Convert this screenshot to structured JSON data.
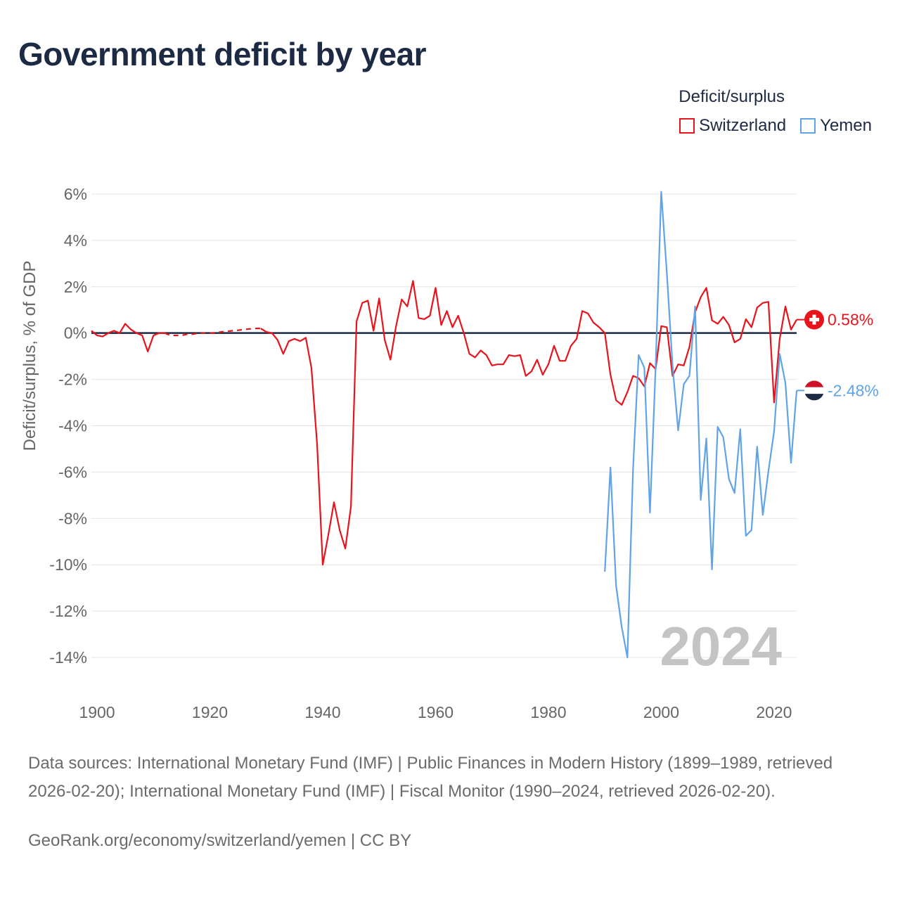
{
  "title": "Government deficit by year",
  "legend": {
    "title": "Deficit/surplus",
    "items": [
      {
        "name": "Switzerland",
        "color": "#e8141c"
      },
      {
        "name": "Yemen",
        "color": "#5fa4e6"
      }
    ]
  },
  "sources": "Data sources: International Monetary Fund (IMF) | Public Finances in Modern History (1899–1989, retrieved 2026-02-20); International Monetary Fund (IMF) | Fiscal Monitor (1990–2024, retrieved 2026-02-20).",
  "credit": "GeoRank.org/economy/switzerland/yemen | CC BY",
  "chart_data": {
    "type": "line",
    "title": "Government deficit by year",
    "xlabel": "",
    "ylabel": "Deficit/surplus, % of GDP",
    "xlim": [
      1899,
      2024
    ],
    "ylim": [
      -15,
      7
    ],
    "x_ticks": [
      1900,
      1920,
      1940,
      1960,
      1980,
      2000,
      2020
    ],
    "y_ticks": [
      6,
      4,
      2,
      0,
      -2,
      -4,
      -6,
      -8,
      -10,
      -12,
      -14
    ],
    "y_tick_labels": [
      "6%",
      "4%",
      "2%",
      "0%",
      "-2%",
      "-4%",
      "-6%",
      "-8%",
      "-10%",
      "-12%",
      "-14%"
    ],
    "year_label": "2024",
    "series": [
      {
        "name": "Switzerland",
        "color": "#e8141c",
        "end_label": "0.58%",
        "gap_range": [
          1912,
          1929
        ],
        "x": [
          1899,
          1900,
          1901,
          1902,
          1903,
          1904,
          1905,
          1906,
          1907,
          1908,
          1909,
          1910,
          1911,
          1912,
          1913,
          1914,
          1915,
          1916,
          1917,
          1918,
          1919,
          1920,
          1921,
          1922,
          1923,
          1924,
          1925,
          1926,
          1927,
          1928,
          1929,
          1930,
          1931,
          1932,
          1933,
          1934,
          1935,
          1936,
          1937,
          1938,
          1939,
          1940,
          1941,
          1942,
          1943,
          1944,
          1945,
          1946,
          1947,
          1948,
          1949,
          1950,
          1951,
          1952,
          1953,
          1954,
          1955,
          1956,
          1957,
          1958,
          1959,
          1960,
          1961,
          1962,
          1963,
          1964,
          1965,
          1966,
          1967,
          1968,
          1969,
          1970,
          1971,
          1972,
          1973,
          1974,
          1975,
          1976,
          1977,
          1978,
          1979,
          1980,
          1981,
          1982,
          1983,
          1984,
          1985,
          1986,
          1987,
          1988,
          1989,
          1990,
          1991,
          1992,
          1993,
          1994,
          1995,
          1996,
          1997,
          1998,
          1999,
          2000,
          2001,
          2002,
          2003,
          2004,
          2005,
          2006,
          2007,
          2008,
          2009,
          2010,
          2011,
          2012,
          2013,
          2014,
          2015,
          2016,
          2017,
          2018,
          2019,
          2020,
          2021,
          2022,
          2023,
          2024
        ],
        "values": [
          0.1,
          -0.1,
          -0.15,
          0.0,
          0.1,
          0.0,
          0.4,
          0.15,
          0.0,
          -0.1,
          -0.8,
          -0.1,
          0.0,
          0.0,
          -0.1,
          -0.1,
          -0.1,
          -0.05,
          -0.05,
          0.0,
          0.0,
          0.0,
          0.0,
          0.05,
          0.07,
          0.1,
          0.12,
          0.15,
          0.18,
          0.2,
          0.2,
          0.05,
          0.0,
          -0.3,
          -0.9,
          -0.35,
          -0.25,
          -0.35,
          -0.2,
          -1.5,
          -4.8,
          -10.0,
          -8.7,
          -7.3,
          -8.5,
          -9.3,
          -7.5,
          0.5,
          1.3,
          1.4,
          0.1,
          1.5,
          -0.3,
          -1.15,
          0.3,
          1.45,
          1.15,
          2.25,
          0.65,
          0.6,
          0.75,
          1.95,
          0.35,
          0.95,
          0.25,
          0.75,
          0.0,
          -0.9,
          -1.05,
          -0.75,
          -0.95,
          -1.4,
          -1.35,
          -1.35,
          -0.95,
          -1.0,
          -0.95,
          -1.85,
          -1.65,
          -1.15,
          -1.8,
          -1.35,
          -0.55,
          -1.2,
          -1.2,
          -0.55,
          -0.25,
          0.95,
          0.85,
          0.45,
          0.25,
          0.0,
          -1.8,
          -2.9,
          -3.1,
          -2.55,
          -1.85,
          -1.95,
          -2.3,
          -1.3,
          -1.55,
          0.3,
          0.25,
          -1.85,
          -1.35,
          -1.4,
          -0.6,
          0.9,
          1.55,
          1.95,
          0.55,
          0.4,
          0.7,
          0.35,
          -0.4,
          -0.25,
          0.6,
          0.25,
          1.1,
          1.3,
          1.35,
          -3.0,
          -0.25,
          1.15,
          0.15,
          0.58
        ]
      },
      {
        "name": "Yemen",
        "color": "#5fa4e6",
        "end_label": "-2.48%",
        "x": [
          1990,
          1991,
          1992,
          1993,
          1994,
          1995,
          1996,
          1997,
          1998,
          1999,
          2000,
          2001,
          2002,
          2003,
          2004,
          2005,
          2006,
          2007,
          2008,
          2009,
          2010,
          2011,
          2012,
          2013,
          2014,
          2015,
          2016,
          2017,
          2018,
          2019,
          2020,
          2021,
          2022,
          2023,
          2024
        ],
        "values": [
          -10.3,
          -5.8,
          -10.9,
          -12.7,
          -14.0,
          -5.9,
          -0.95,
          -1.5,
          -7.75,
          -1.5,
          6.1,
          2.6,
          -1.4,
          -4.2,
          -2.2,
          -1.85,
          1.15,
          -7.2,
          -4.55,
          -10.2,
          -4.05,
          -4.5,
          -6.3,
          -6.9,
          -4.15,
          -8.75,
          -8.5,
          -4.9,
          -7.85,
          -5.95,
          -4.25,
          -0.9,
          -2.15,
          -5.6,
          -2.48
        ]
      }
    ]
  }
}
